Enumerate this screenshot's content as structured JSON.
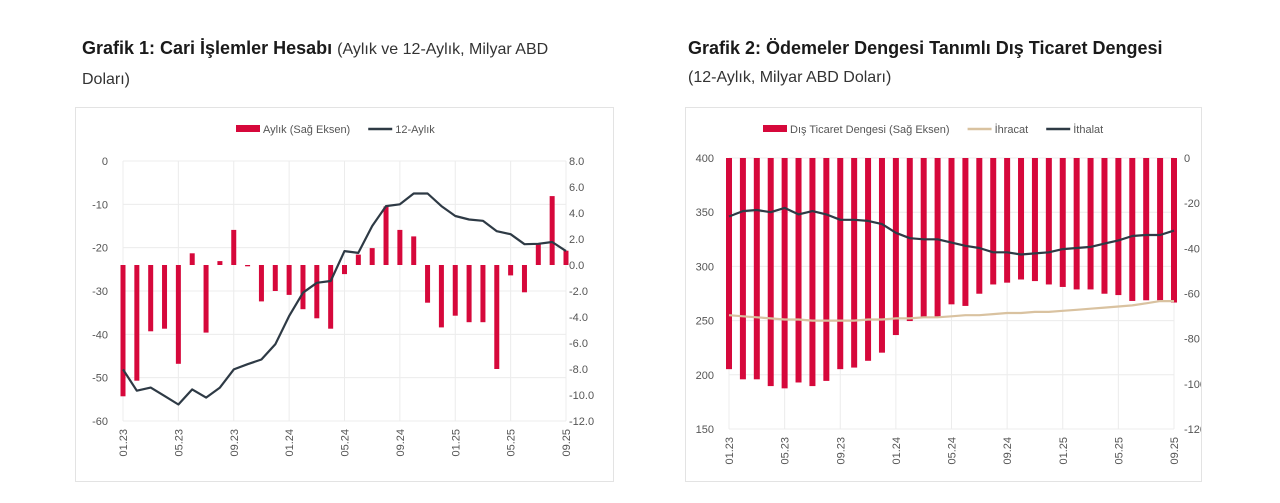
{
  "chart_data": [
    {
      "type": "bar+line",
      "title": "Grafik 1: Cari İşlemler Hesabı",
      "subtitle": "(Aylık ve 12-Aylık, Milyar ABD Doları)",
      "legend": {
        "placement": "top",
        "entries": [
          "Aylık (Sağ Eksen)",
          "12-Aylık"
        ]
      },
      "x_tick_labels": [
        "01.23",
        "05.23",
        "09.23",
        "01.24",
        "05.24",
        "09.24",
        "01.25",
        "05.25",
        "09.25"
      ],
      "months": [
        "01.23",
        "02.23",
        "03.23",
        "04.23",
        "05.23",
        "06.23",
        "07.23",
        "08.23",
        "09.23",
        "10.23",
        "11.23",
        "12.23",
        "01.24",
        "02.24",
        "03.24",
        "04.24",
        "05.24",
        "06.24",
        "07.24",
        "08.24",
        "09.24",
        "10.24",
        "11.24",
        "12.24",
        "01.25",
        "02.25",
        "03.25",
        "04.25",
        "05.25",
        "06.25",
        "07.25",
        "08.25",
        "09.25"
      ],
      "left_axis": {
        "ylim": [
          -60,
          0
        ],
        "ticks": [
          "0",
          "-10",
          "-20",
          "-30",
          "-40",
          "-50",
          "-60"
        ]
      },
      "right_axis": {
        "ylim": [
          -12,
          8
        ],
        "ticks": [
          "8.0",
          "6.0",
          "4.0",
          "2.0",
          "0.0",
          "-2.0",
          "-4.0",
          "-6.0",
          "-8.0",
          "-10.0",
          "-12.0"
        ]
      },
      "grid": true,
      "series": [
        {
          "name": "Aylık (Sağ Eksen)",
          "type": "bar",
          "axis": "right",
          "color": "#d6083b",
          "values": [
            -10.1,
            -8.9,
            -5.1,
            -4.9,
            -7.6,
            0.9,
            -5.2,
            0.3,
            2.7,
            -0.1,
            -2.8,
            -2.0,
            -2.3,
            -3.4,
            -4.1,
            -4.9,
            -0.7,
            0.8,
            1.3,
            4.5,
            2.7,
            2.2,
            -2.9,
            -4.8,
            -3.9,
            -4.4,
            -4.4,
            -8.0,
            -0.8,
            -2.1,
            1.6,
            5.3,
            1.1
          ]
        },
        {
          "name": "12-Aylık",
          "type": "line",
          "axis": "left",
          "color": "#2e3a45",
          "values": [
            -48.1,
            -53.0,
            -52.3,
            -54.2,
            -56.2,
            -52.7,
            -54.6,
            -52.3,
            -48.1,
            -46.9,
            -45.8,
            -42.3,
            -35.8,
            -30.4,
            -28.1,
            -27.7,
            -20.8,
            -21.2,
            -15.0,
            -10.4,
            -10.0,
            -7.5,
            -7.5,
            -10.4,
            -12.7,
            -13.5,
            -13.8,
            -16.2,
            -16.9,
            -19.2,
            -19.1,
            -18.7,
            -20.8
          ]
        }
      ]
    },
    {
      "type": "bar+line",
      "title": "Grafik 2: Ödemeler Dengesi Tanımlı Dış Ticaret Dengesi",
      "subtitle": "(12-Aylık, Milyar ABD Doları)",
      "legend": {
        "placement": "top",
        "entries": [
          "Dış Ticaret Dengesi (Sağ Eksen)",
          "İhracat",
          "İthalat"
        ]
      },
      "x_tick_labels": [
        "01.23",
        "05.23",
        "09.23",
        "01.24",
        "05.24",
        "09.24",
        "01.25",
        "05.25",
        "09.25"
      ],
      "months": [
        "01.23",
        "02.23",
        "03.23",
        "04.23",
        "05.23",
        "06.23",
        "07.23",
        "08.23",
        "09.23",
        "10.23",
        "11.23",
        "12.23",
        "01.24",
        "02.24",
        "03.24",
        "04.24",
        "05.24",
        "06.24",
        "07.24",
        "08.24",
        "09.24",
        "10.24",
        "11.24",
        "12.24",
        "01.25",
        "02.25",
        "03.25",
        "04.25",
        "05.25",
        "06.25",
        "07.25",
        "08.25",
        "09.25"
      ],
      "left_axis": {
        "ylim": [
          150,
          400
        ],
        "ticks": [
          "400",
          "350",
          "300",
          "250",
          "200",
          "150"
        ]
      },
      "right_axis": {
        "ylim": [
          -120,
          0
        ],
        "ticks": [
          "0",
          "-20",
          "-40",
          "-60",
          "-80",
          "-100",
          "-120"
        ]
      },
      "grid": true,
      "series": [
        {
          "name": "Dış Ticaret Dengesi (Sağ Eksen)",
          "type": "bar",
          "axis": "right",
          "color": "#d6083b",
          "values": [
            -93.5,
            -98,
            -98,
            -101,
            -102,
            -99.4,
            -101,
            -98.7,
            -93.5,
            -92.8,
            -89.8,
            -86.2,
            -78.4,
            -72.2,
            -70.7,
            -70.7,
            -64.8,
            -65.5,
            -60.1,
            -56,
            -55.2,
            -53.8,
            -54.5,
            -56,
            -57.1,
            -58.2,
            -58.2,
            -60.1,
            -60.7,
            -63.3,
            -63,
            -63,
            -64
          ]
        },
        {
          "name": "İhracat",
          "type": "line",
          "axis": "left",
          "color": "#d9c2a0",
          "values": [
            255,
            254,
            253,
            252,
            251,
            251,
            250,
            250,
            250,
            250,
            251,
            251,
            252,
            252,
            253,
            253,
            254,
            255,
            255,
            256,
            257,
            257,
            258,
            258,
            259,
            260,
            261,
            262,
            263,
            264,
            266,
            268,
            268
          ]
        },
        {
          "name": "İthalat",
          "type": "line",
          "axis": "left",
          "color": "#2e3a45",
          "values": [
            346,
            351,
            352,
            350,
            354,
            348,
            351,
            348,
            343,
            343,
            342,
            339,
            331,
            326,
            325,
            325,
            322,
            319,
            317,
            313,
            313,
            311,
            312,
            313,
            316,
            317,
            318,
            321,
            324,
            328,
            329,
            329,
            333
          ]
        }
      ]
    }
  ]
}
